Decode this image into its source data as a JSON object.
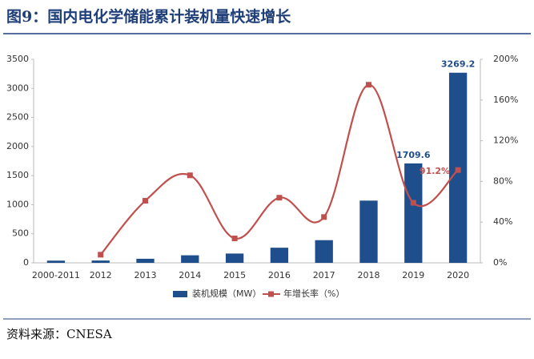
{
  "chart_data": {
    "type": "bar_line",
    "title": "图9：国内电化学储能累计装机量快速增长",
    "source": "资料来源：CNESA",
    "categories": [
      "2000-2011",
      "2012",
      "2013",
      "2014",
      "2015",
      "2016",
      "2017",
      "2018",
      "2019",
      "2020"
    ],
    "series": [
      {
        "name": "装机规模（MW）",
        "type": "bar",
        "color": "#1f4e8c",
        "values": [
          38,
          40,
          70,
          130,
          160,
          260,
          390,
          1070,
          1709.6,
          3269.2
        ],
        "value_labels": [
          null,
          null,
          null,
          null,
          null,
          null,
          null,
          null,
          "1709.6",
          "3269.2"
        ]
      },
      {
        "name": "年增长率（%）",
        "type": "line",
        "axis": "y2",
        "color": "#c0504d",
        "values": [
          null,
          8,
          61,
          86,
          24,
          64,
          45,
          175,
          59,
          91.2
        ],
        "value_labels": [
          null,
          null,
          null,
          null,
          null,
          null,
          null,
          null,
          null,
          "91.2%"
        ]
      }
    ],
    "ylim": [
      0,
      3500
    ],
    "yticks": [
      0,
      500,
      1000,
      1500,
      2000,
      2500,
      3000,
      3500
    ],
    "y2lim": [
      0,
      200
    ],
    "y2ticks": [
      {
        "value": 0,
        "label": "0%"
      },
      {
        "value": 40,
        "label": "40%"
      },
      {
        "value": 80,
        "label": "80%"
      },
      {
        "value": 120,
        "label": "120%"
      },
      {
        "value": 160,
        "label": "160%"
      },
      {
        "value": 200,
        "label": "200%"
      }
    ],
    "legend": "bottom"
  }
}
